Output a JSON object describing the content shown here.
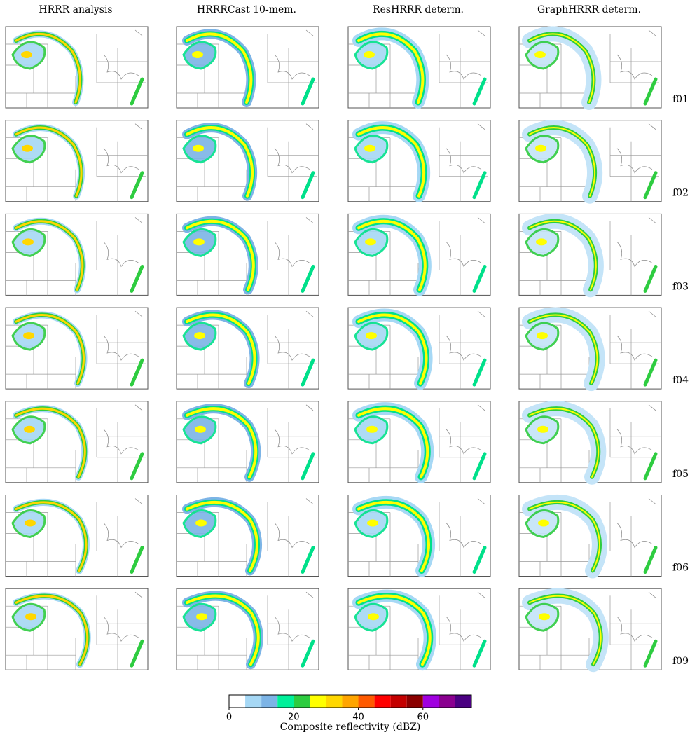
{
  "column_titles": [
    "HRRR analysis",
    "HRRRCast 10-mem.",
    "ResHRRR determ.",
    "GraphHRRR determ."
  ],
  "row_labels": [
    "f01",
    "f02",
    "f03",
    "f04",
    "f05",
    "f06",
    "f09"
  ],
  "chart_data": {
    "type": "colorbar",
    "label": "Composite reflectivity (dBZ)",
    "bounds": [
      0,
      5,
      10,
      15,
      20,
      25,
      30,
      35,
      40,
      45,
      50,
      55,
      60,
      65,
      70,
      75
    ],
    "colors": [
      "#ffffff",
      "#a6d8f5",
      "#7cb4e6",
      "#00f09a",
      "#2ecc40",
      "#ffff00",
      "#ffd700",
      "#ffa500",
      "#ff5a00",
      "#ff0000",
      "#c40000",
      "#8b0000",
      "#a000e0",
      "#8a0090",
      "#4b0082"
    ],
    "xlim": [
      0,
      75
    ],
    "xticks": [
      0,
      20,
      40,
      60
    ]
  }
}
